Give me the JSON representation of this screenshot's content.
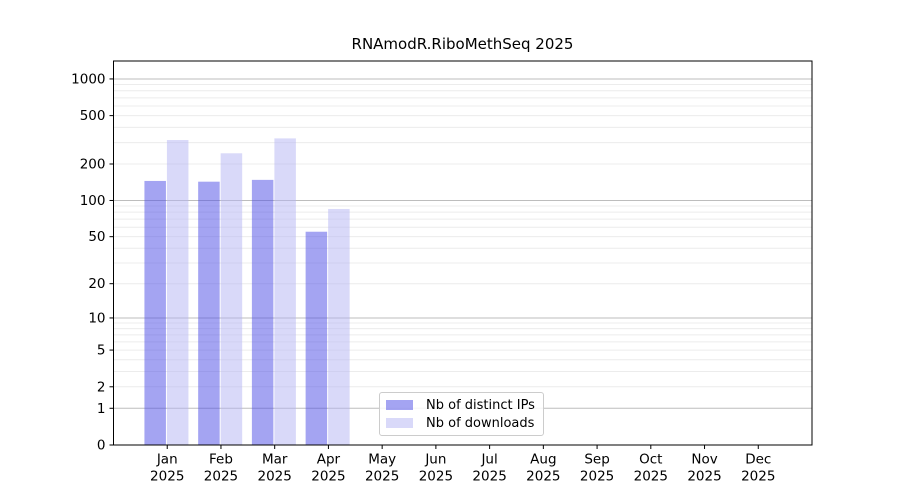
{
  "chart_data": {
    "type": "bar",
    "title": "RNAmodR.RiboMethSeq 2025",
    "xlabel": "",
    "ylabel": "",
    "y_scale": "log1p",
    "grid": true,
    "legend_position": "lower center",
    "categories": [
      "Jan",
      "Feb",
      "Mar",
      "Apr",
      "May",
      "Jun",
      "Jul",
      "Aug",
      "Sep",
      "Oct",
      "Nov",
      "Dec"
    ],
    "tick_label_line2": "2025",
    "yticks": [
      0,
      1,
      2,
      5,
      10,
      20,
      50,
      100,
      200,
      500,
      1000
    ],
    "ylim": [
      0,
      1375
    ],
    "series": [
      {
        "name": "Nb of distinct IPs",
        "hex": "#a4a4f2",
        "fill": "rgba(80,80,230,0.52)",
        "values": [
          145,
          143,
          148,
          55,
          0,
          0,
          0,
          0,
          0,
          0,
          0,
          0
        ]
      },
      {
        "name": "Nb of downloads",
        "hex": "#dadaf9",
        "fill": "rgba(180,180,243,0.5)",
        "values": [
          315,
          245,
          325,
          85,
          0,
          0,
          0,
          0,
          0,
          0,
          0,
          0
        ]
      }
    ],
    "colors": {
      "grid_major": "#bdbdbd",
      "grid_minor": "#ececec",
      "axis": "#000000",
      "background": "#ffffff"
    }
  }
}
